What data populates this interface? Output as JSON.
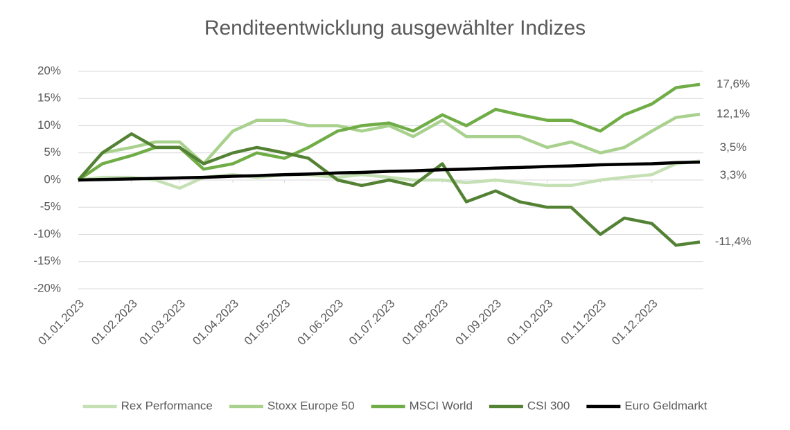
{
  "chart_data": {
    "type": "line",
    "title": "Renditeentwicklung ausgewählter Indizes",
    "x": [
      "01.01.2023",
      "15.01.2023",
      "01.02.2023",
      "15.02.2023",
      "01.03.2023",
      "15.03.2023",
      "01.04.2023",
      "15.04.2023",
      "01.05.2023",
      "15.05.2023",
      "01.06.2023",
      "15.06.2023",
      "01.07.2023",
      "15.07.2023",
      "01.08.2023",
      "15.08.2023",
      "01.09.2023",
      "15.09.2023",
      "01.10.2023",
      "15.10.2023",
      "01.11.2023",
      "15.11.2023",
      "01.12.2023",
      "15.12.2023",
      "29.12.2023"
    ],
    "series": [
      {
        "name": "Rex Performance",
        "color": "#c5e0b4",
        "end_label": "3,5%",
        "values": [
          0,
          0.5,
          0.5,
          0,
          -1.5,
          0.5,
          1,
          0.5,
          1,
          1,
          0.5,
          1,
          0.5,
          0,
          0,
          -0.5,
          0,
          -0.5,
          -1,
          -1,
          0,
          0.5,
          1,
          3,
          3.5
        ]
      },
      {
        "name": "Stoxx Europe 50",
        "color": "#a9d18e",
        "end_label": "12,1%",
        "values": [
          0,
          5,
          6,
          7,
          7,
          3,
          9,
          11,
          11,
          10,
          10,
          9,
          10,
          8,
          11,
          8,
          8,
          8,
          6,
          7,
          5,
          6,
          9,
          11.5,
          12.1
        ]
      },
      {
        "name": "MSCI World",
        "color": "#70ad47",
        "end_label": "17,6%",
        "values": [
          0,
          3,
          4.5,
          6,
          6,
          2,
          3,
          5,
          4,
          6,
          9,
          10,
          10.5,
          9,
          12,
          10,
          13,
          12,
          11,
          11,
          9,
          12,
          14,
          17,
          17.6
        ]
      },
      {
        "name": "CSI 300",
        "color": "#548235",
        "end_label": "-11,4%",
        "values": [
          0,
          5,
          8.5,
          6,
          6,
          3,
          5,
          6,
          5,
          4,
          0,
          -1,
          0,
          -1,
          3,
          -4,
          -2,
          -4,
          -5,
          -5,
          -10,
          -7,
          -8,
          -12,
          -11.4
        ]
      },
      {
        "name": "Euro Geldmarkt",
        "color": "#000000",
        "end_label": "3,3%",
        "values": [
          0,
          0.1,
          0.2,
          0.3,
          0.4,
          0.5,
          0.7,
          0.8,
          1.0,
          1.1,
          1.3,
          1.4,
          1.6,
          1.7,
          1.9,
          2.0,
          2.2,
          2.3,
          2.5,
          2.6,
          2.8,
          2.9,
          3.0,
          3.2,
          3.3
        ]
      }
    ],
    "xlim": [
      "01.01.2023",
      "31.12.2023"
    ],
    "xticks": [
      "01.01.2023",
      "01.02.2023",
      "01.03.2023",
      "01.04.2023",
      "01.05.2023",
      "01.06.2023",
      "01.07.2023",
      "01.08.2023",
      "01.09.2023",
      "01.10.2023",
      "01.11.2023",
      "01.12.2023"
    ],
    "ylim": [
      -20,
      20
    ],
    "yticks": [
      {
        "value": -20,
        "label": "-20%"
      },
      {
        "value": -15,
        "label": "-15%"
      },
      {
        "value": -10,
        "label": "-10%"
      },
      {
        "value": -5,
        "label": "-5%"
      },
      {
        "value": 0,
        "label": "0%"
      },
      {
        "value": 5,
        "label": "5%"
      },
      {
        "value": 10,
        "label": "10%"
      },
      {
        "value": 15,
        "label": "15%"
      },
      {
        "value": 20,
        "label": "20%"
      }
    ],
    "grid": true,
    "legend": "bottom"
  }
}
